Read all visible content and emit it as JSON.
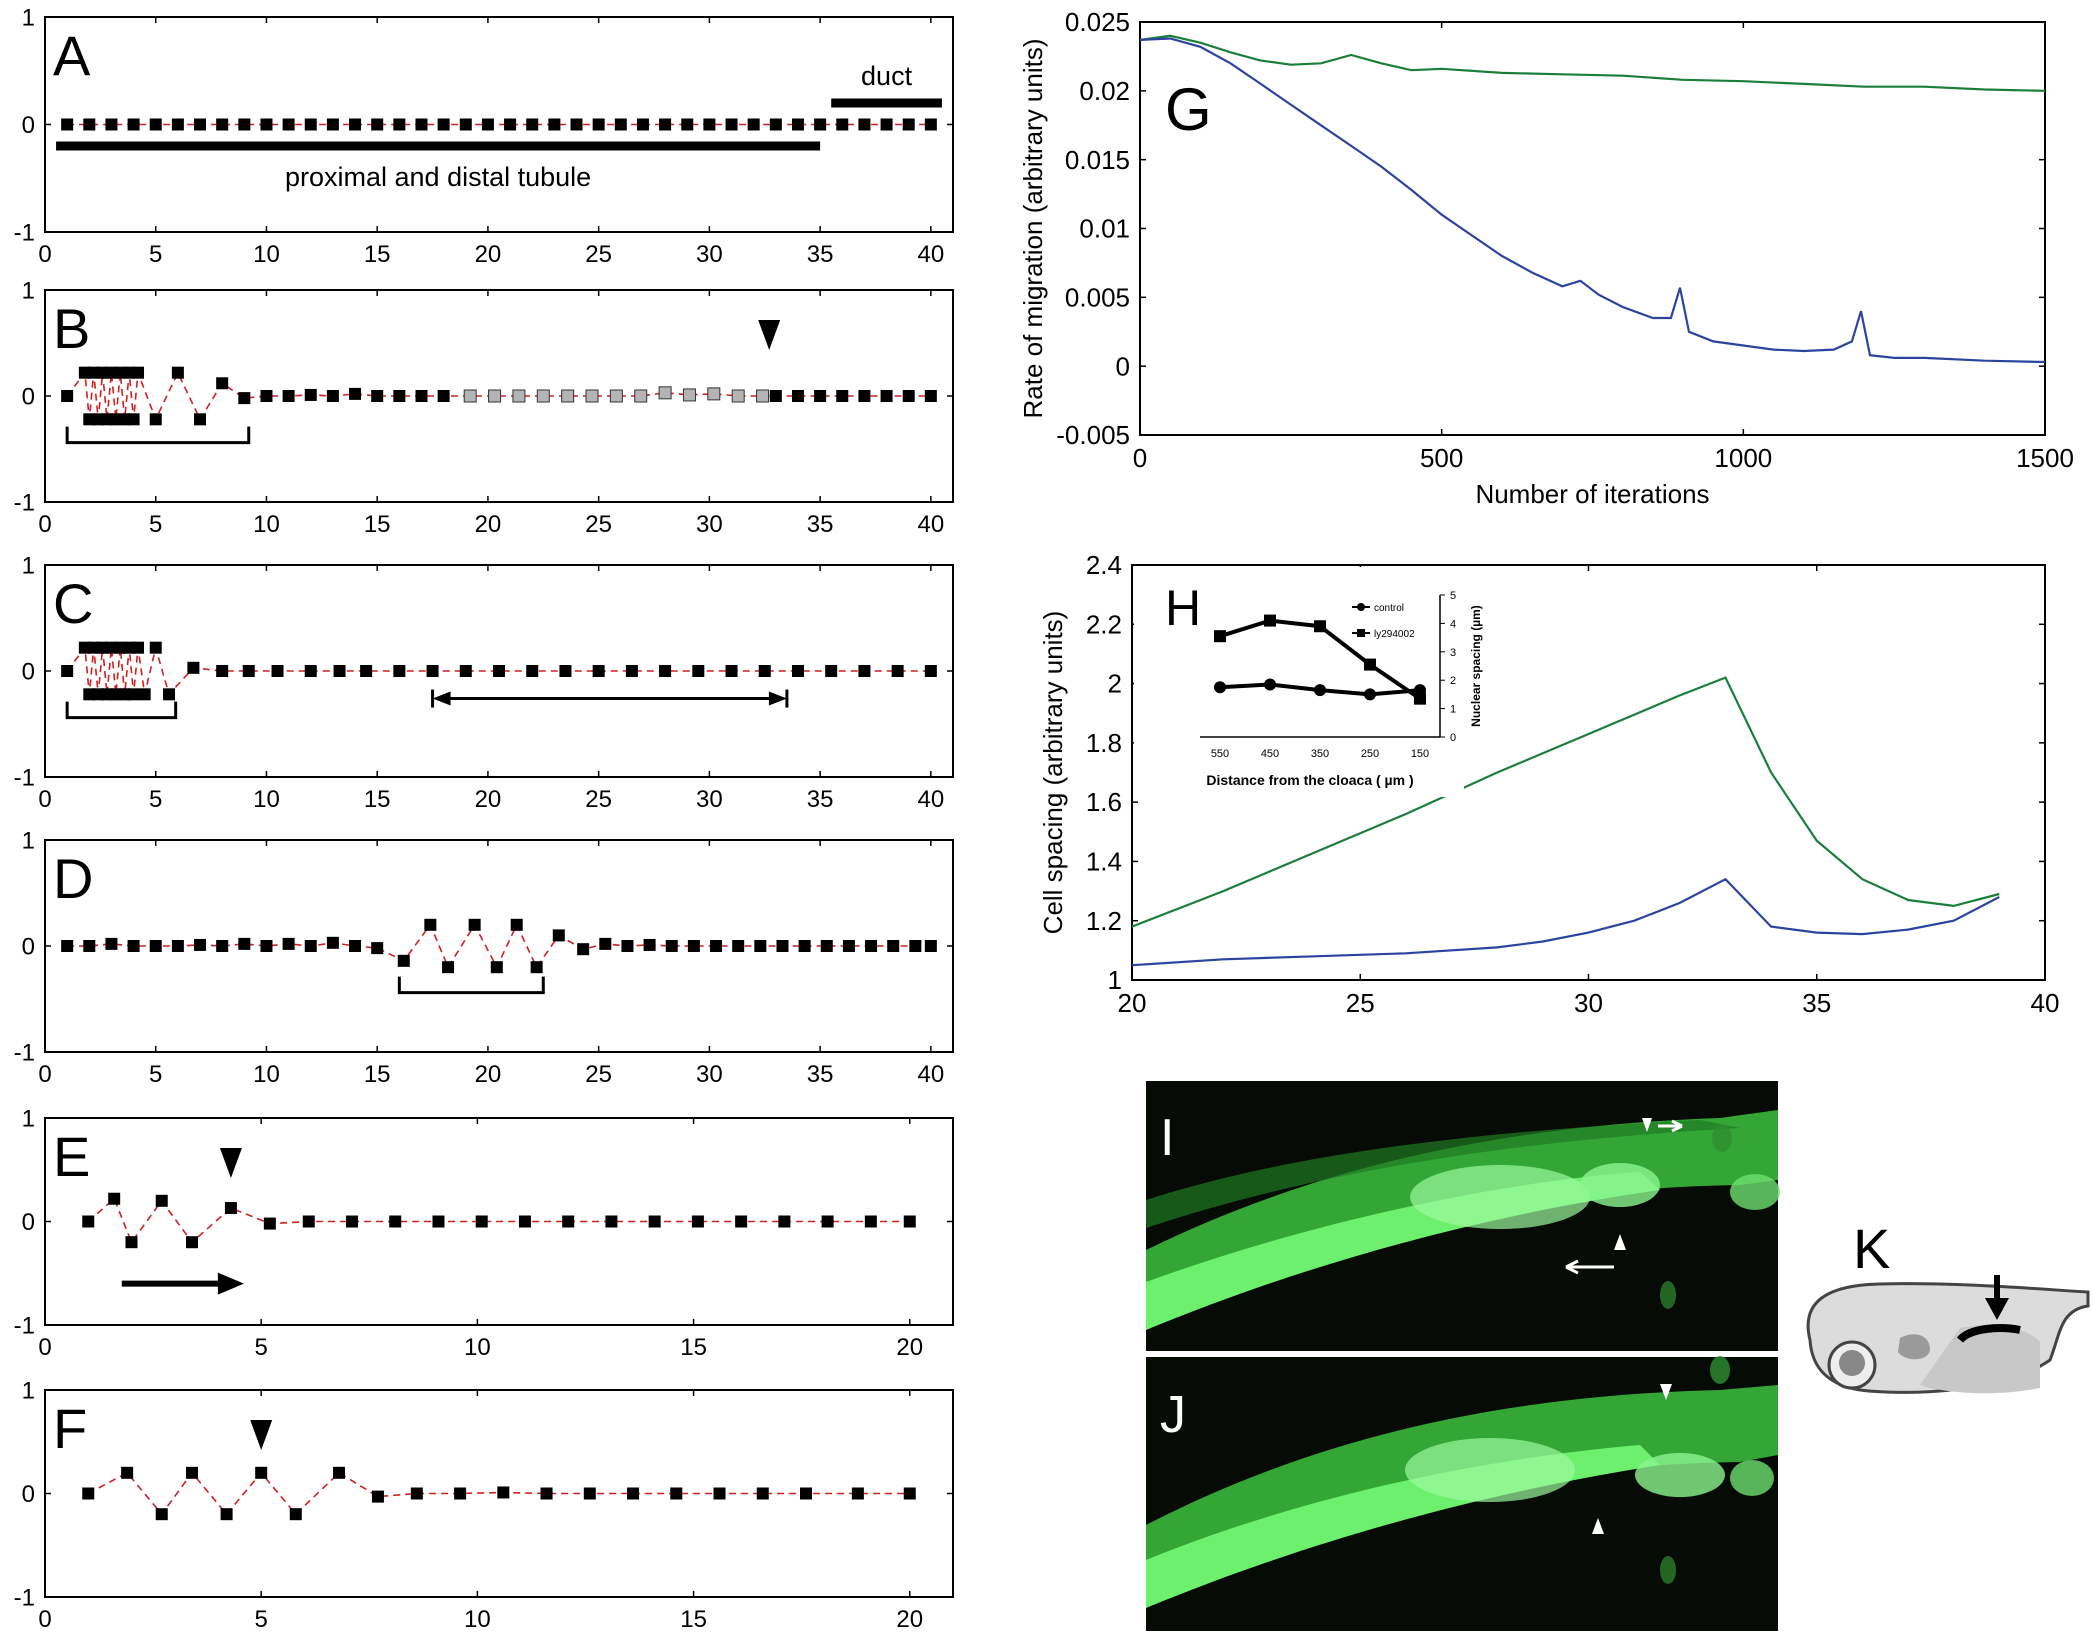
{
  "figure": {
    "colors": {
      "tube": "#d21f1f",
      "square": "#000000",
      "grey_square": "#b4b4b4",
      "green": "#1a7f3a",
      "blue": "#2c44a0",
      "micro_bg": "#060b06",
      "gfp": "#57e35a"
    },
    "panels": {
      "A": "A",
      "B": "B",
      "C": "C",
      "D": "D",
      "E": "E",
      "F": "F",
      "G": "G",
      "H": "H",
      "I": "I",
      "J": "J",
      "K": "K"
    }
  },
  "chart_data": [
    {
      "panel": "A",
      "type": "scatter",
      "xlim": [
        0,
        41
      ],
      "ylim": [
        -1,
        1
      ],
      "xticks": [
        "0",
        "5",
        "10",
        "15",
        "20",
        "25",
        "30",
        "35",
        "40"
      ],
      "yticks": [
        "-1",
        "0",
        "1"
      ],
      "x": [
        1,
        2,
        3,
        4,
        5,
        6,
        7,
        8,
        9,
        10,
        11,
        12,
        13,
        14,
        15,
        16,
        17,
        18,
        19,
        20,
        21,
        22,
        23,
        24,
        25,
        26,
        27,
        28,
        29,
        30,
        31,
        32,
        33,
        34,
        35,
        36,
        37,
        38,
        39,
        40
      ],
      "y": [
        0,
        0,
        0,
        0,
        0,
        0,
        0,
        0,
        0,
        0,
        0,
        0,
        0,
        0,
        0,
        0,
        0,
        0,
        0,
        0,
        0,
        0,
        0,
        0,
        0,
        0,
        0,
        0,
        0,
        0,
        0,
        0,
        0,
        0,
        0,
        0,
        0,
        0,
        0,
        0
      ],
      "annotations": [
        {
          "text": "duct",
          "x1": 35.5,
          "x2": 40.5,
          "y": 0.2
        },
        {
          "text": "proximal and distal tubule",
          "x1": 0.5,
          "x2": 35,
          "y": -0.2
        }
      ]
    },
    {
      "panel": "B",
      "type": "scatter",
      "xlim": [
        0,
        41
      ],
      "ylim": [
        -1,
        1
      ],
      "xticks": [
        "0",
        "5",
        "10",
        "15",
        "20",
        "25",
        "30",
        "35",
        "40"
      ],
      "yticks": [
        "-1",
        "0",
        "1"
      ],
      "x": [
        1,
        1.8,
        2.0,
        2.2,
        2.4,
        2.6,
        2.8,
        3.0,
        3.2,
        3.4,
        3.6,
        3.8,
        4.0,
        4.2,
        5,
        6,
        7,
        8,
        9,
        10,
        11,
        12,
        13,
        14,
        15,
        16,
        17,
        18,
        19.2,
        20.3,
        21.4,
        22.5,
        23.6,
        24.7,
        25.8,
        26.9,
        28.0,
        29.1,
        30.2,
        31.3,
        32.4,
        33,
        34,
        35,
        36,
        37,
        38,
        39,
        40
      ],
      "y": [
        0,
        0.22,
        -0.22,
        0.22,
        -0.22,
        0.22,
        -0.22,
        0.22,
        -0.22,
        0.22,
        -0.22,
        0.22,
        -0.22,
        0.22,
        -0.22,
        0.22,
        -0.22,
        0.12,
        -0.02,
        0,
        0,
        0.01,
        0,
        0.02,
        0,
        0,
        0,
        0,
        0,
        0,
        0,
        0,
        0,
        0,
        0,
        0,
        0.03,
        0.01,
        0.02,
        0,
        0,
        0,
        0,
        0,
        0,
        0,
        0,
        0,
        0
      ],
      "grey_x_range": [
        19,
        32.5
      ],
      "bracket_x": [
        1,
        9.2
      ],
      "arrowhead_x": 32.7
    },
    {
      "panel": "C",
      "type": "scatter",
      "xlim": [
        0,
        41
      ],
      "ylim": [
        -1,
        1
      ],
      "xticks": [
        "0",
        "5",
        "10",
        "15",
        "20",
        "25",
        "30",
        "35",
        "40"
      ],
      "yticks": [
        "-1",
        "0",
        "1"
      ],
      "x": [
        1,
        1.8,
        2.0,
        2.2,
        2.4,
        2.6,
        2.8,
        3.0,
        3.2,
        3.4,
        3.6,
        3.8,
        4.0,
        4.2,
        4.5,
        5,
        5.6,
        6.7,
        8,
        9.2,
        10.5,
        12,
        13.3,
        14.5,
        16,
        17.5,
        19,
        20.5,
        22,
        23.5,
        25,
        26.5,
        28,
        29.5,
        31,
        32.5,
        34,
        35.5,
        37,
        38.5,
        40
      ],
      "y": [
        0,
        0.22,
        -0.22,
        0.22,
        -0.22,
        0.22,
        -0.22,
        0.22,
        -0.22,
        0.22,
        -0.22,
        0.22,
        -0.22,
        0.22,
        -0.22,
        0.22,
        -0.22,
        0.03,
        0,
        0,
        0,
        0,
        0,
        0,
        0,
        0,
        0,
        0,
        0,
        0,
        0,
        0,
        0,
        0,
        0,
        0,
        0,
        0,
        0,
        0,
        0
      ],
      "bracket_x": [
        1,
        5.9
      ],
      "double_arrow_x": [
        17.5,
        33.5
      ]
    },
    {
      "panel": "D",
      "type": "scatter",
      "xlim": [
        0,
        41
      ],
      "ylim": [
        -1,
        1
      ],
      "xticks": [
        "0",
        "5",
        "10",
        "15",
        "20",
        "25",
        "30",
        "35",
        "40"
      ],
      "yticks": [
        "-1",
        "0",
        "1"
      ],
      "x": [
        1,
        2,
        3,
        4,
        5,
        6,
        7,
        8,
        9,
        10,
        11,
        12,
        13,
        14,
        15,
        16.2,
        17.4,
        18.2,
        19.4,
        20.4,
        21.3,
        22.2,
        23.2,
        24.3,
        25.3,
        26.3,
        27.3,
        28.3,
        29.3,
        30.3,
        31.3,
        32.3,
        33.3,
        34.3,
        35.3,
        36.3,
        37.3,
        38.3,
        39.3,
        40
      ],
      "y": [
        0,
        0,
        0.02,
        0,
        0,
        0,
        0.01,
        0,
        0.02,
        0,
        0.02,
        0,
        0.03,
        0,
        -0.02,
        -0.14,
        0.2,
        -0.2,
        0.2,
        -0.2,
        0.2,
        -0.2,
        0.1,
        -0.03,
        0.02,
        0,
        0.01,
        0,
        0,
        0,
        0,
        0,
        0,
        0,
        0,
        0,
        0,
        0,
        0,
        0
      ],
      "bracket_x": [
        16,
        22.5
      ]
    },
    {
      "panel": "E",
      "type": "scatter",
      "xlim": [
        0,
        21
      ],
      "ylim": [
        -1,
        1
      ],
      "xticks": [
        "0",
        "5",
        "10",
        "15",
        "20"
      ],
      "yticks": [
        "-1",
        "0",
        "1"
      ],
      "x": [
        1,
        1.6,
        2.0,
        2.7,
        3.4,
        4.3,
        5.2,
        6.1,
        7.1,
        8.1,
        9.1,
        10.1,
        11.1,
        12.1,
        13.1,
        14.1,
        15.1,
        16.1,
        17.1,
        18.1,
        19.1,
        20
      ],
      "y": [
        0,
        0.22,
        -0.2,
        0.2,
        -0.2,
        0.13,
        -0.02,
        0,
        0,
        0,
        0,
        0,
        0,
        0,
        0,
        0,
        0,
        0,
        0,
        0,
        0,
        0
      ],
      "arrowhead_x": 4.3,
      "arrow_x": [
        2.7,
        4.6
      ]
    },
    {
      "panel": "F",
      "type": "scatter",
      "xlim": [
        0,
        21
      ],
      "ylim": [
        -1,
        1
      ],
      "xticks": [
        "0",
        "5",
        "10",
        "15",
        "20"
      ],
      "yticks": [
        "-1",
        "0",
        "1"
      ],
      "x": [
        1,
        1.9,
        2.7,
        3.4,
        4.2,
        5.0,
        5.8,
        6.8,
        7.7,
        8.6,
        9.6,
        10.6,
        11.6,
        12.6,
        13.6,
        14.6,
        15.6,
        16.6,
        17.6,
        18.8,
        20
      ],
      "y": [
        0,
        0.2,
        -0.2,
        0.2,
        -0.2,
        0.2,
        -0.2,
        0.2,
        -0.03,
        0,
        0,
        0.01,
        0,
        0,
        0,
        0,
        0,
        0,
        0,
        0,
        0
      ],
      "arrowhead_x": 5.0
    },
    {
      "panel": "G",
      "type": "line",
      "xlabel": "Number of iterations",
      "ylabel": "Rate of migration (arbitrary units)",
      "xlim": [
        0,
        1500
      ],
      "ylim": [
        -0.005,
        0.025
      ],
      "xticks": [
        "0",
        "500",
        "1000",
        "1500"
      ],
      "yticks": [
        "-0.005",
        "0",
        "0.005",
        "0.01",
        "0.015",
        "0.02",
        "0.025"
      ],
      "series": [
        {
          "color": "green",
          "x": [
            0,
            50,
            100,
            150,
            200,
            250,
            300,
            350,
            400,
            450,
            500,
            600,
            700,
            800,
            900,
            1000,
            1100,
            1200,
            1300,
            1400,
            1500
          ],
          "y": [
            0.0237,
            0.024,
            0.0235,
            0.0228,
            0.0222,
            0.0219,
            0.022,
            0.0226,
            0.022,
            0.0215,
            0.0216,
            0.0213,
            0.0212,
            0.0211,
            0.0208,
            0.0207,
            0.0205,
            0.0203,
            0.0203,
            0.0201,
            0.02
          ]
        },
        {
          "color": "blue",
          "x": [
            0,
            50,
            100,
            150,
            200,
            250,
            300,
            350,
            400,
            450,
            500,
            550,
            600,
            650,
            700,
            730,
            760,
            800,
            850,
            880,
            895,
            910,
            950,
            1000,
            1050,
            1100,
            1150,
            1180,
            1195,
            1210,
            1250,
            1300,
            1400,
            1500
          ],
          "y": [
            0.0237,
            0.0238,
            0.0232,
            0.022,
            0.0205,
            0.019,
            0.0175,
            0.016,
            0.0145,
            0.0128,
            0.011,
            0.0095,
            0.008,
            0.0068,
            0.0058,
            0.0062,
            0.0052,
            0.0043,
            0.0035,
            0.0035,
            0.0057,
            0.0025,
            0.0018,
            0.0015,
            0.0012,
            0.0011,
            0.0012,
            0.0018,
            0.004,
            0.0008,
            0.0006,
            0.0006,
            0.0004,
            0.0003
          ]
        }
      ]
    },
    {
      "panel": "H",
      "type": "line",
      "ylabel": "Cell spacing (arbitrary units)",
      "xlim": [
        20,
        40
      ],
      "ylim": [
        1,
        2.4
      ],
      "xticks": [
        "20",
        "25",
        "30",
        "35",
        "40"
      ],
      "yticks": [
        "1",
        "1.2",
        "1.4",
        "1.6",
        "1.8",
        "2",
        "2.2",
        "2.4"
      ],
      "series": [
        {
          "color": "green",
          "x": [
            20,
            22,
            24,
            26,
            28,
            30,
            32,
            33,
            34,
            35,
            36,
            37,
            38,
            39
          ],
          "y": [
            1.18,
            1.3,
            1.43,
            1.56,
            1.7,
            1.83,
            1.96,
            2.02,
            1.7,
            1.47,
            1.34,
            1.27,
            1.25,
            1.29
          ]
        },
        {
          "color": "blue",
          "x": [
            20,
            22,
            24,
            26,
            28,
            29,
            30,
            31,
            32,
            33,
            34,
            35,
            36,
            37,
            38,
            39
          ],
          "y": [
            1.05,
            1.07,
            1.08,
            1.09,
            1.11,
            1.13,
            1.16,
            1.2,
            1.26,
            1.34,
            1.18,
            1.16,
            1.155,
            1.17,
            1.2,
            1.28
          ]
        }
      ],
      "inset": {
        "xlabel": "Distance from the cloaca ( µm )",
        "ylabel": "Nuclear spacing (µm)",
        "categories": [
          "550",
          "450",
          "350",
          "250",
          "150"
        ],
        "yticks": [
          "0",
          "1",
          "2",
          "3",
          "4",
          "5"
        ],
        "ylim": [
          0,
          5
        ],
        "series": [
          {
            "name": "control",
            "marker": "circle",
            "values": [
              1.75,
              1.85,
              1.65,
              1.5,
              1.65
            ]
          },
          {
            "name": "ly294002",
            "marker": "square",
            "values": [
              3.55,
              4.1,
              3.9,
              2.55,
              1.35
            ]
          }
        ]
      }
    }
  ]
}
